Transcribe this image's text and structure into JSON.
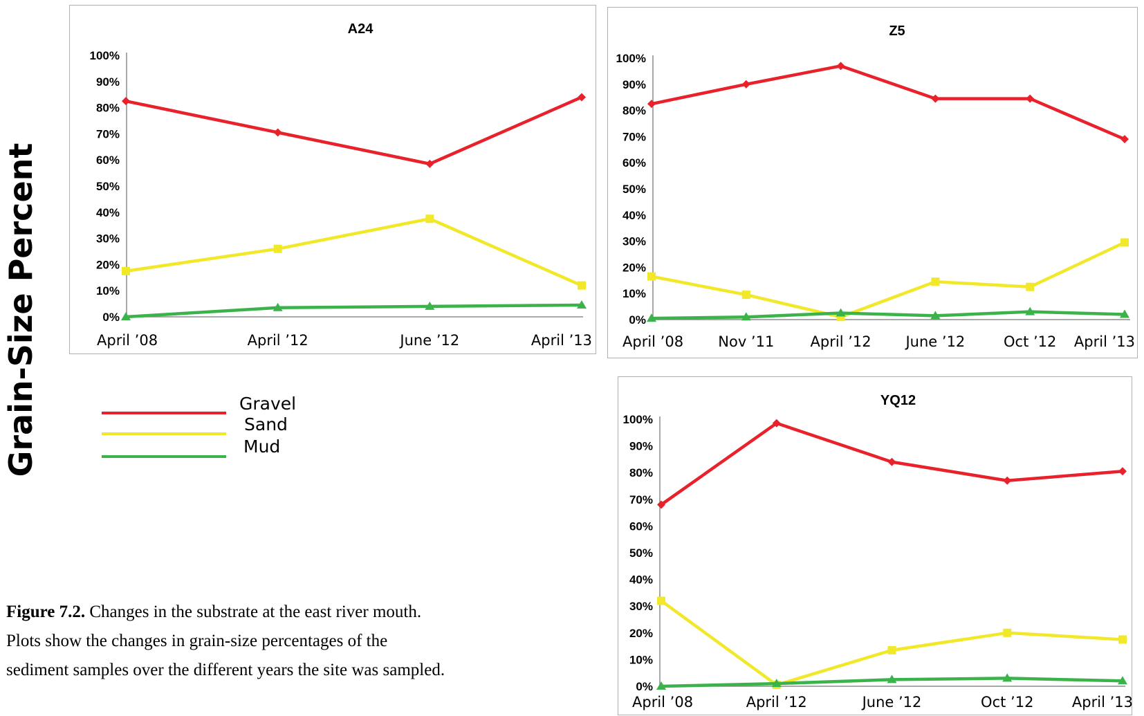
{
  "y_axis_title": "Grain-Size Percent",
  "legend": [
    {
      "name": "Gravel",
      "color": "#e8212a"
    },
    {
      "name": "Sand",
      "color": "#f2e82a"
    },
    {
      "name": "Mud",
      "color": "#3cb34a"
    }
  ],
  "caption": {
    "label": "Figure 7.2.",
    "line1": " Changes in the substrate at the east river mouth.",
    "line2": "Plots show the changes in grain-size percentages of the",
    "line3": "sediment samples over the different years the site was sampled."
  },
  "chart_data": [
    {
      "id": "a24",
      "type": "line",
      "title": "A24",
      "xlabel": "",
      "ylabel": "",
      "ylim": [
        0,
        100
      ],
      "y_ticks": [
        "0%",
        "10%",
        "20%",
        "30%",
        "40%",
        "50%",
        "60%",
        "70%",
        "80%",
        "90%",
        "100%"
      ],
      "categories": [
        "April ’08",
        "April ’12",
        "June ’12",
        "April ’13"
      ],
      "series": [
        {
          "name": "Gravel",
          "color": "#e8212a",
          "marker": "diamond",
          "values": [
            82.5,
            70.5,
            58.5,
            84
          ]
        },
        {
          "name": "Sand",
          "color": "#f2e82a",
          "marker": "square",
          "values": [
            17.5,
            26,
            37.5,
            12
          ]
        },
        {
          "name": "Mud",
          "color": "#3cb34a",
          "marker": "triangle",
          "values": [
            0,
            3.5,
            4,
            4.5
          ]
        }
      ]
    },
    {
      "id": "z5",
      "type": "line",
      "title": "Z5",
      "xlabel": "",
      "ylabel": "",
      "ylim": [
        0,
        100
      ],
      "y_ticks": [
        "0%",
        "10%",
        "20%",
        "30%",
        "40%",
        "50%",
        "60%",
        "70%",
        "80%",
        "90%",
        "100%"
      ],
      "categories": [
        "April ’08",
        "Nov ’11",
        "April ’12",
        "June ’12",
        "Oct  ’12",
        "April ’13"
      ],
      "series": [
        {
          "name": "Gravel",
          "color": "#e8212a",
          "marker": "diamond",
          "values": [
            82.5,
            90,
            97,
            84.5,
            84.5,
            69
          ]
        },
        {
          "name": "Sand",
          "color": "#f2e82a",
          "marker": "square",
          "values": [
            16.5,
            9.5,
            1,
            14.5,
            12.5,
            29.5
          ]
        },
        {
          "name": "Mud",
          "color": "#3cb34a",
          "marker": "triangle",
          "values": [
            0.5,
            1,
            2.5,
            1.5,
            3,
            2
          ]
        }
      ]
    },
    {
      "id": "yq12",
      "type": "line",
      "title": "YQ12",
      "xlabel": "",
      "ylabel": "",
      "ylim": [
        0,
        100
      ],
      "y_ticks": [
        "0%",
        "10%",
        "20%",
        "30%",
        "40%",
        "50%",
        "60%",
        "70%",
        "80%",
        "90%",
        "100%"
      ],
      "categories": [
        "April ’08",
        "April ’12",
        "June ’12",
        "Oct  ’12",
        "April ’13"
      ],
      "series": [
        {
          "name": "Gravel",
          "color": "#e8212a",
          "marker": "diamond",
          "values": [
            68,
            98.5,
            84,
            77,
            80.5
          ]
        },
        {
          "name": "Sand",
          "color": "#f2e82a",
          "marker": "square",
          "values": [
            32,
            0.5,
            13.5,
            20,
            17.5
          ]
        },
        {
          "name": "Mud",
          "color": "#3cb34a",
          "marker": "triangle",
          "values": [
            0,
            1,
            2.5,
            3,
            2
          ]
        }
      ]
    }
  ]
}
